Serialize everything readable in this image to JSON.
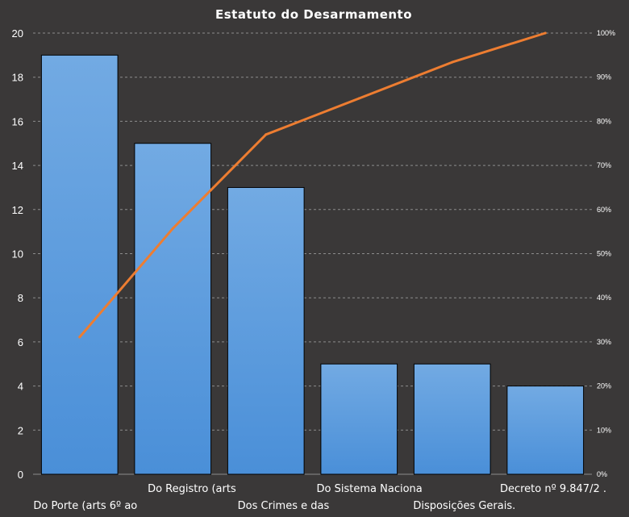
{
  "chart_data": {
    "type": "bar",
    "title": "Estatuto do Desarmamento",
    "categories": [
      "Do Porte (arts 6º ao",
      "Do Registro (arts",
      "Dos Crimes e das",
      "Do Sistema Naciona",
      "Disposições Gerais.",
      "Decreto nº 9.847/2 ."
    ],
    "series": [
      {
        "type": "bar",
        "values": [
          19,
          15,
          13,
          5,
          5,
          4
        ]
      },
      {
        "type": "line",
        "axis": "right",
        "values": [
          31.1,
          55.7,
          77.0,
          85.2,
          93.4,
          100
        ]
      }
    ],
    "y_left": {
      "range": [
        0,
        20
      ],
      "ticks": [
        "0",
        "2",
        "4",
        "6",
        "8",
        "10",
        "12",
        "14",
        "16",
        "18",
        "20"
      ]
    },
    "y_right": {
      "range": [
        0,
        100
      ],
      "ticks": [
        "0%",
        "10%",
        "20%",
        "30%",
        "40%",
        "50%",
        "60%",
        "70%",
        "80%",
        "90%",
        "100%"
      ]
    },
    "grid": "horizontal-dashed",
    "colors": {
      "background": "#3a3838",
      "bar": "#4a8fd8",
      "bar_top": "#72aae3",
      "line": "#ed7d31",
      "grid": "#8c8c8c",
      "text": "#ffffff"
    }
  }
}
